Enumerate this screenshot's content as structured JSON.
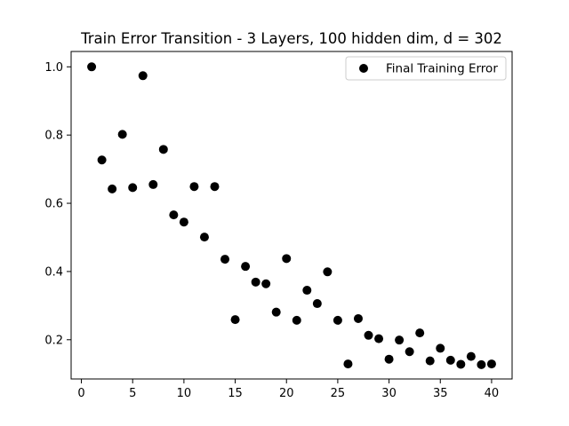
{
  "chart_data": {
    "type": "scatter",
    "title": "Train Error Transition - 3 Layers, 100 hidden dim, d = 302",
    "xlabel": "",
    "ylabel": "",
    "xlim": [
      -1,
      42
    ],
    "ylim": [
      0.085,
      1.045
    ],
    "xticks": [
      0,
      5,
      10,
      15,
      20,
      25,
      30,
      35,
      40
    ],
    "yticks": [
      0.2,
      0.4,
      0.6,
      0.8,
      1.0
    ],
    "yticks_labels": [
      "0.2",
      "0.4",
      "0.6",
      "0.8",
      "1.0"
    ],
    "grid": false,
    "legend_position": "upper-right",
    "series": [
      {
        "name": "Final Training Error",
        "color": "#000000",
        "marker": "circle",
        "x": [
          1,
          2,
          3,
          4,
          5,
          6,
          7,
          8,
          9,
          10,
          11,
          12,
          13,
          14,
          15,
          16,
          17,
          18,
          19,
          20,
          21,
          22,
          23,
          24,
          25,
          26,
          27,
          28,
          29,
          30,
          31,
          32,
          33,
          34,
          35,
          36,
          37,
          38,
          39,
          40
        ],
        "y": [
          1.0,
          0.727,
          0.642,
          0.802,
          0.646,
          0.974,
          0.655,
          0.758,
          0.566,
          0.545,
          0.649,
          0.501,
          0.649,
          0.436,
          0.259,
          0.415,
          0.369,
          0.364,
          0.281,
          0.438,
          0.257,
          0.345,
          0.306,
          0.399,
          0.257,
          0.129,
          0.262,
          0.213,
          0.203,
          0.143,
          0.199,
          0.165,
          0.22,
          0.138,
          0.175,
          0.14,
          0.128,
          0.151,
          0.127,
          0.129
        ]
      }
    ]
  }
}
